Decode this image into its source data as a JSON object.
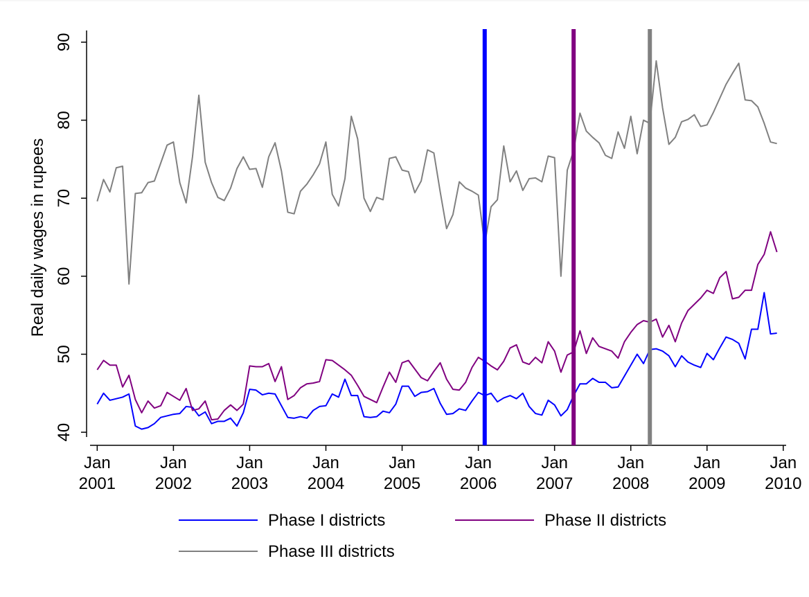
{
  "chart_data": {
    "type": "line",
    "y_label": "Real daily wages in rupees",
    "x": [
      "2001-01",
      "2001-02",
      "2001-03",
      "2001-04",
      "2001-05",
      "2001-06",
      "2001-07",
      "2001-08",
      "2001-09",
      "2001-10",
      "2001-11",
      "2001-12",
      "2002-01",
      "2002-02",
      "2002-03",
      "2002-04",
      "2002-05",
      "2002-06",
      "2002-07",
      "2002-08",
      "2002-09",
      "2002-10",
      "2002-11",
      "2002-12",
      "2003-01",
      "2003-02",
      "2003-03",
      "2003-04",
      "2003-05",
      "2003-06",
      "2003-07",
      "2003-08",
      "2003-09",
      "2003-10",
      "2003-11",
      "2003-12",
      "2004-01",
      "2004-02",
      "2004-03",
      "2004-04",
      "2004-05",
      "2004-06",
      "2004-07",
      "2004-08",
      "2004-09",
      "2004-10",
      "2004-11",
      "2004-12",
      "2005-01",
      "2005-02",
      "2005-03",
      "2005-04",
      "2005-05",
      "2005-06",
      "2005-07",
      "2005-08",
      "2005-09",
      "2005-10",
      "2005-11",
      "2005-12",
      "2006-01",
      "2006-02",
      "2006-03",
      "2006-04",
      "2006-05",
      "2006-06",
      "2006-07",
      "2006-08",
      "2006-09",
      "2006-10",
      "2006-11",
      "2006-12",
      "2007-01",
      "2007-02",
      "2007-03",
      "2007-04",
      "2007-05",
      "2007-06",
      "2007-07",
      "2007-08",
      "2007-09",
      "2007-10",
      "2007-11",
      "2007-12",
      "2008-01",
      "2008-02",
      "2008-03",
      "2008-04",
      "2008-05",
      "2008-06",
      "2008-07",
      "2008-08",
      "2008-09",
      "2008-10",
      "2008-11",
      "2008-12",
      "2009-01",
      "2009-02",
      "2009-03",
      "2009-04",
      "2009-05",
      "2009-06",
      "2009-07",
      "2009-08",
      "2009-09",
      "2009-10",
      "2009-11",
      "2009-12"
    ],
    "series": [
      {
        "name": "Phase I districts",
        "color": "#0000ff",
        "values": [
          43.6,
          45.0,
          44.1,
          44.3,
          44.5,
          44.9,
          40.8,
          40.4,
          40.6,
          41.1,
          41.9,
          42.1,
          42.3,
          42.4,
          43.3,
          43.2,
          42.1,
          42.6,
          41.1,
          41.4,
          41.4,
          41.8,
          40.8,
          42.5,
          45.5,
          45.4,
          44.8,
          45.0,
          44.9,
          43.4,
          41.9,
          41.8,
          42.0,
          41.8,
          42.8,
          43.3,
          43.4,
          44.9,
          44.5,
          46.8,
          44.7,
          44.7,
          42.0,
          41.9,
          42.0,
          42.7,
          42.5,
          43.6,
          45.9,
          45.9,
          44.6,
          45.1,
          45.2,
          45.6,
          43.7,
          42.3,
          42.4,
          43.0,
          42.8,
          44.0,
          45.1,
          44.7,
          45.0,
          43.9,
          44.4,
          44.7,
          44.3,
          45.0,
          43.3,
          42.4,
          42.2,
          44.1,
          43.5,
          42.1,
          42.9,
          44.7,
          46.2,
          46.2,
          46.9,
          46.4,
          46.4,
          45.7,
          45.8,
          47.2,
          48.6,
          50.0,
          48.8,
          50.6,
          50.7,
          50.4,
          49.8,
          48.4,
          49.8,
          49.0,
          48.6,
          48.3,
          50.1,
          49.3,
          50.8,
          52.2,
          51.9,
          51.4,
          49.4,
          53.2,
          53.2,
          57.9,
          52.6,
          52.7
        ]
      },
      {
        "name": "Phase II districts",
        "color": "#800080",
        "values": [
          48.0,
          49.2,
          48.6,
          48.6,
          45.8,
          47.3,
          44.2,
          42.5,
          44.0,
          43.1,
          43.4,
          45.1,
          44.6,
          44.1,
          45.6,
          42.8,
          43.0,
          44.0,
          41.6,
          41.7,
          42.8,
          43.5,
          42.8,
          43.6,
          48.5,
          48.4,
          48.4,
          48.8,
          46.5,
          48.4,
          44.2,
          44.7,
          45.7,
          46.2,
          46.3,
          46.5,
          49.3,
          49.2,
          48.6,
          48.0,
          47.3,
          46.0,
          44.6,
          44.2,
          43.8,
          45.8,
          47.7,
          46.4,
          48.9,
          49.2,
          48.1,
          47.0,
          46.6,
          47.8,
          48.9,
          46.8,
          45.5,
          45.4,
          46.4,
          48.3,
          49.6,
          49.1,
          48.5,
          48.0,
          49.1,
          50.8,
          51.2,
          49.0,
          48.7,
          49.6,
          48.9,
          51.6,
          50.4,
          47.7,
          49.9,
          50.3,
          53.0,
          50.1,
          52.1,
          51.0,
          50.7,
          50.4,
          49.5,
          51.6,
          52.8,
          53.8,
          54.3,
          54.1,
          54.5,
          52.2,
          53.7,
          51.6,
          54.0,
          55.6,
          56.4,
          57.2,
          58.2,
          57.8,
          59.8,
          60.6,
          57.1,
          57.3,
          58.2,
          58.2,
          61.5,
          62.8,
          65.7,
          63.1
        ]
      },
      {
        "name": "Phase III districts",
        "color": "#808080",
        "values": [
          69.6,
          72.4,
          70.8,
          73.9,
          74.1,
          59.0,
          70.6,
          70.7,
          72.0,
          72.2,
          74.5,
          76.8,
          77.2,
          72.0,
          69.4,
          75.3,
          83.2,
          74.6,
          72.0,
          70.1,
          69.7,
          71.3,
          73.8,
          75.3,
          73.7,
          73.8,
          71.4,
          75.3,
          77.1,
          73.5,
          68.2,
          68.0,
          70.9,
          71.8,
          73.0,
          74.4,
          77.2,
          70.5,
          69.0,
          72.5,
          80.5,
          77.6,
          70.0,
          68.3,
          70.1,
          69.8,
          75.1,
          75.3,
          73.6,
          73.4,
          70.7,
          72.2,
          76.2,
          75.8,
          70.8,
          66.1,
          67.9,
          72.1,
          71.3,
          70.9,
          70.4,
          64.1,
          68.9,
          69.8,
          76.7,
          72.1,
          73.5,
          71.0,
          72.5,
          72.6,
          72.1,
          75.4,
          75.2,
          60.0,
          73.6,
          76.1,
          80.9,
          78.6,
          77.8,
          77.1,
          75.5,
          75.1,
          78.5,
          76.4,
          80.5,
          75.7,
          80.0,
          79.6,
          87.6,
          81.6,
          76.9,
          77.8,
          79.8,
          80.1,
          80.7,
          79.2,
          79.4,
          81.0,
          82.8,
          84.6,
          86.0,
          87.3,
          82.6,
          82.5,
          81.7,
          79.6,
          77.2,
          77.0
        ]
      }
    ],
    "vlines": [
      {
        "x": "2006-02",
        "color": "#0000ff"
      },
      {
        "x": "2007-04",
        "color": "#800080"
      },
      {
        "x": "2008-04",
        "color": "#808080"
      }
    ],
    "xlim": [
      "2000-11",
      "2010-02"
    ],
    "xticks": [
      {
        "value": "2001-01",
        "label": "Jan 2001"
      },
      {
        "value": "2002-01",
        "label": "Jan 2002"
      },
      {
        "value": "2003-01",
        "label": "Jan 2003"
      },
      {
        "value": "2004-01",
        "label": "Jan 2004"
      },
      {
        "value": "2005-01",
        "label": "Jan 2005"
      },
      {
        "value": "2006-01",
        "label": "Jan 2006"
      },
      {
        "value": "2007-01",
        "label": "Jan 2007"
      },
      {
        "value": "2008-01",
        "label": "Jan 2008"
      },
      {
        "value": "2009-01",
        "label": "Jan 2009"
      },
      {
        "value": "2010-01",
        "label": "Jan 2010"
      }
    ],
    "ylim": [
      38.5,
      91.5
    ],
    "yticks": [
      40,
      50,
      60,
      70,
      80,
      90
    ],
    "grid": false,
    "legend": "bottom"
  }
}
